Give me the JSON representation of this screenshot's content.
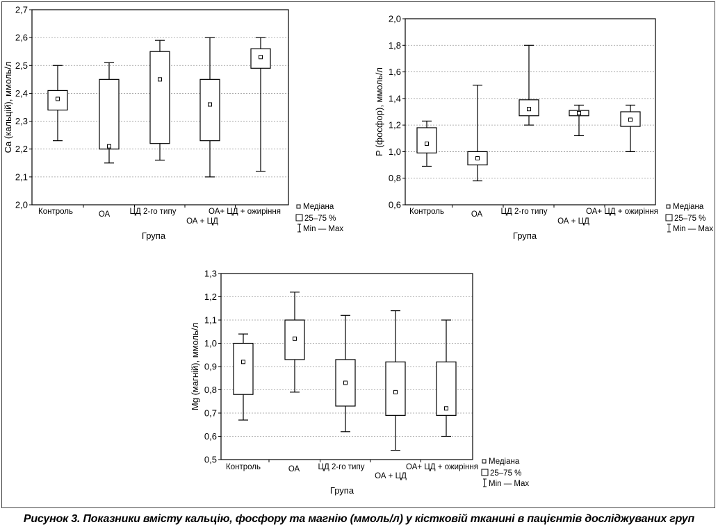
{
  "caption": "Рисунок 3. Показники вмісту кальцію, фосфору та магнію (ммоль/л) у кістковій тканині в пацієнтів досліджуваних груп",
  "legend": {
    "median": "Медіана",
    "iqr": "25–75 %",
    "range": "Min — Max"
  },
  "chart_data": [
    {
      "type": "box",
      "xlabel": "Група",
      "ylabel": "Ca (кальцій), ммоль/л",
      "ylim": [
        2.0,
        2.7
      ],
      "yticks": [
        "2,0",
        "2,1",
        "2,2",
        "2,3",
        "2,4",
        "2,5",
        "2,6",
        "2,7"
      ],
      "categories": [
        "Контроль",
        "ОА",
        "ЦД 2-го типу",
        "ОА + ЦД",
        "ОА+ ЦД + ожиріння"
      ],
      "boxes": [
        {
          "min": 2.23,
          "q1": 2.34,
          "median": 2.38,
          "q3": 2.41,
          "max": 2.5
        },
        {
          "min": 2.15,
          "q1": 2.2,
          "median": 2.21,
          "q3": 2.45,
          "max": 2.51
        },
        {
          "min": 2.16,
          "q1": 2.22,
          "median": 2.45,
          "q3": 2.55,
          "max": 2.59
        },
        {
          "min": 2.1,
          "q1": 2.23,
          "median": 2.36,
          "q3": 2.45,
          "max": 2.6
        },
        {
          "min": 2.12,
          "q1": 2.49,
          "median": 2.53,
          "q3": 2.56,
          "max": 2.6
        }
      ]
    },
    {
      "type": "box",
      "xlabel": "Група",
      "ylabel": "P (фосфор), ммоль/л",
      "ylim": [
        0.6,
        2.0
      ],
      "yticks": [
        "0,6",
        "0,8",
        "1,0",
        "1,2",
        "1,4",
        "1,6",
        "1,8",
        "2,0"
      ],
      "categories": [
        "Контроль",
        "ОА",
        "ЦД 2-го типу",
        "ОА + ЦД",
        "ОА+ ЦД + ожиріння"
      ],
      "boxes": [
        {
          "min": 0.89,
          "q1": 0.99,
          "median": 1.06,
          "q3": 1.18,
          "max": 1.23
        },
        {
          "min": 0.78,
          "q1": 0.9,
          "median": 0.95,
          "q3": 1.0,
          "max": 1.5
        },
        {
          "min": 1.2,
          "q1": 1.27,
          "median": 1.32,
          "q3": 1.39,
          "max": 1.8
        },
        {
          "min": 1.12,
          "q1": 1.27,
          "median": 1.29,
          "q3": 1.31,
          "max": 1.35
        },
        {
          "min": 1.0,
          "q1": 1.19,
          "median": 1.24,
          "q3": 1.3,
          "max": 1.35
        }
      ]
    },
    {
      "type": "box",
      "xlabel": "Група",
      "ylabel": "Mg (магній), ммоль/л",
      "ylim": [
        0.5,
        1.3
      ],
      "yticks": [
        "0,5",
        "0,6",
        "0,7",
        "0,8",
        "0,9",
        "1,0",
        "1,1",
        "1,2",
        "1,3"
      ],
      "categories": [
        "Контроль",
        "ОА",
        "ЦД 2-го типу",
        "ОА + ЦД",
        "ОА+ ЦД + ожиріння"
      ],
      "boxes": [
        {
          "min": 0.67,
          "q1": 0.78,
          "median": 0.92,
          "q3": 1.0,
          "max": 1.04
        },
        {
          "min": 0.79,
          "q1": 0.93,
          "median": 1.02,
          "q3": 1.1,
          "max": 1.22
        },
        {
          "min": 0.62,
          "q1": 0.73,
          "median": 0.83,
          "q3": 0.93,
          "max": 1.12
        },
        {
          "min": 0.54,
          "q1": 0.69,
          "median": 0.79,
          "q3": 0.92,
          "max": 1.14
        },
        {
          "min": 0.6,
          "q1": 0.69,
          "median": 0.72,
          "q3": 0.92,
          "max": 1.1
        }
      ]
    }
  ]
}
